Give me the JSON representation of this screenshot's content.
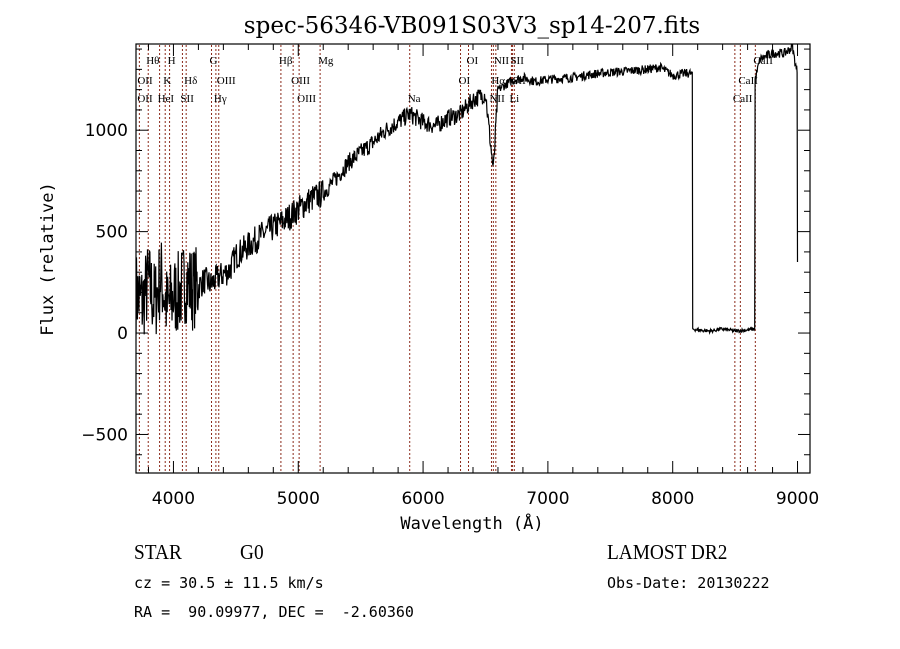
{
  "chart_data": {
    "type": "line",
    "title": "spec-56346-VB091S03V3_sp14-207.fits",
    "xlabel": "Wavelength (Å)",
    "ylabel": "Flux (relative)",
    "xlim": [
      3700,
      9100
    ],
    "ylim": [
      -690,
      1425
    ],
    "xticks": [
      4000,
      5000,
      6000,
      7000,
      8000,
      9000
    ],
    "xtick_labels": [
      "4000",
      "5000",
      "6000",
      "7000",
      "8000",
      "9000"
    ],
    "yticks": [
      -500,
      0,
      500,
      1000
    ],
    "ytick_labels": [
      "−500",
      "0",
      "500",
      "1000"
    ],
    "grid": false,
    "legend": "none",
    "series": [
      {
        "name": "spectrum",
        "x": [
          3700,
          3750,
          3800,
          3850,
          3900,
          3950,
          4000,
          4050,
          4100,
          4150,
          4200,
          4250,
          4300,
          4350,
          4400,
          4450,
          4500,
          4600,
          4700,
          4800,
          4900,
          5000,
          5100,
          5200,
          5300,
          5400,
          5500,
          5600,
          5700,
          5800,
          5890,
          5950,
          6000,
          6100,
          6200,
          6300,
          6400,
          6500,
          6563,
          6600,
          6700,
          6800,
          6900,
          7000,
          7200,
          7400,
          7600,
          7800,
          7900,
          8000,
          8100,
          8150,
          8160,
          8200,
          8300,
          8400,
          8500,
          8600,
          8650,
          8660,
          8700,
          8800,
          8900,
          8960,
          8990,
          9000
        ],
        "y": [
          200,
          150,
          250,
          150,
          280,
          120,
          180,
          200,
          260,
          220,
          230,
          260,
          240,
          270,
          290,
          310,
          380,
          430,
          480,
          520,
          560,
          610,
          660,
          690,
          760,
          840,
          890,
          940,
          1000,
          1040,
          1080,
          1060,
          1040,
          1020,
          1060,
          1080,
          1150,
          1180,
          800,
          1200,
          1240,
          1260,
          1240,
          1250,
          1260,
          1280,
          1290,
          1300,
          1310,
          1270,
          1280,
          1280,
          20,
          15,
          10,
          20,
          10,
          15,
          20,
          1250,
          1350,
          1380,
          1380,
          1410,
          1300,
          350
        ]
      }
    ],
    "line_markers": [
      {
        "label": "Hθ",
        "wavelength": 3798
      },
      {
        "label": "H",
        "wavelength": 3969
      },
      {
        "label": "G",
        "wavelength": 4305
      },
      {
        "label": "Hβ",
        "wavelength": 4861
      },
      {
        "label": "Mg",
        "wavelength": 5175
      },
      {
        "label": "OII",
        "wavelength": 3727
      },
      {
        "label": "K",
        "wavelength": 3934
      },
      {
        "label": "Hδ",
        "wavelength": 4102
      },
      {
        "label": "OIII",
        "wavelength": 4363
      },
      {
        "label": "OIII",
        "wavelength": 4959
      },
      {
        "label": "OII",
        "wavelength": 3727
      },
      {
        "label": "HeI",
        "wavelength": 3889
      },
      {
        "label": "SII",
        "wavelength": 4072
      },
      {
        "label": "Hγ",
        "wavelength": 4340
      },
      {
        "label": "OIII",
        "wavelength": 5007
      },
      {
        "label": "Na",
        "wavelength": 5893
      },
      {
        "label": "OI",
        "wavelength": 6364
      },
      {
        "label": "OI",
        "wavelength": 6300
      },
      {
        "label": "NII",
        "wavelength": 6583
      },
      {
        "label": "SII",
        "wavelength": 6716
      },
      {
        "label": "Hα",
        "wavelength": 6563
      },
      {
        "label": "SII",
        "wavelength": 6731
      },
      {
        "label": "NII",
        "wavelength": 6548
      },
      {
        "label": "Li",
        "wavelength": 6708
      },
      {
        "label": "CaII",
        "wavelength": 8662
      },
      {
        "label": "CaII",
        "wavelength": 8542
      },
      {
        "label": "CaII",
        "wavelength": 8498
      }
    ],
    "annotations": {
      "class_label": "STAR",
      "subclass_label": "G0",
      "survey_label": "LAMOST DR2",
      "redshift_line": "cz = 30.5 ± 11.5 km/s",
      "obs_date_line": "Obs-Date: 20130222",
      "coords_line": "RA =  90.09977, DEC =  -2.60360"
    }
  },
  "colors": {
    "spectrum": "#000000",
    "marker_lines": "#8b2a1a",
    "frame": "#000000"
  }
}
